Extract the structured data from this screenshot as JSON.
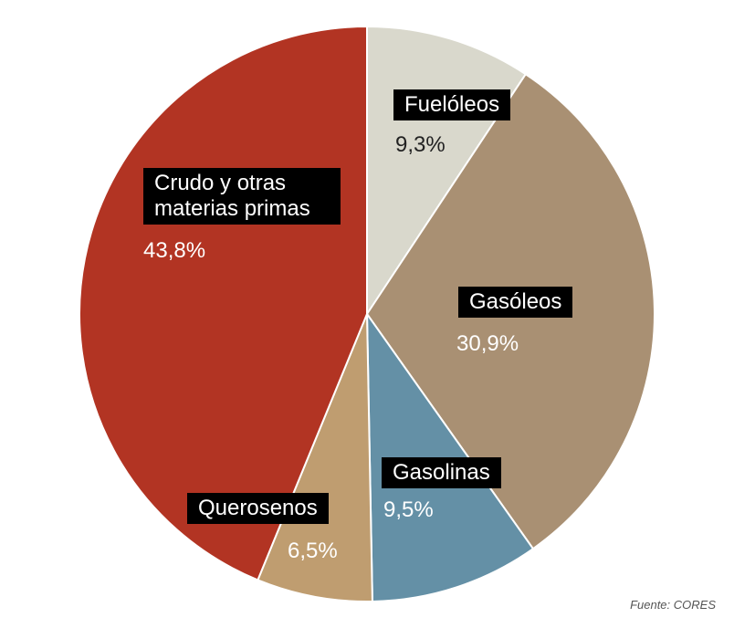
{
  "chart_data": {
    "type": "pie",
    "categories": [
      "Fuelóleos",
      "Gasóleos",
      "Gasolinas",
      "Querosenos",
      "Crudo y otras materias primas"
    ],
    "values": [
      9.3,
      30.9,
      9.5,
      6.5,
      43.8
    ],
    "value_labels": [
      "9,3%",
      "30,9%",
      "9,5%",
      "6,5%",
      "43,8%"
    ],
    "colors": [
      "#d9d8cc",
      "#a99073",
      "#6490a6",
      "#bf9d70",
      "#b23423"
    ],
    "source": "Fuente: CORES"
  }
}
